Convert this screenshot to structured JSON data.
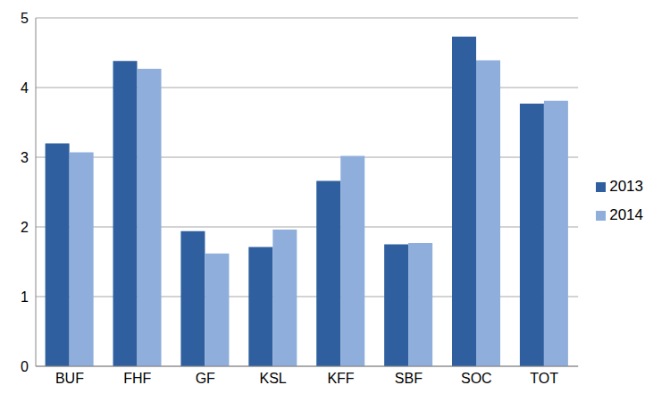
{
  "chart_data": {
    "type": "bar",
    "categories": [
      "BUF",
      "FHF",
      "GF",
      "KSL",
      "KFF",
      "SBF",
      "SOC",
      "TOT"
    ],
    "series": [
      {
        "name": "2013",
        "color": "#2f5f9e",
        "values": [
          3.2,
          4.38,
          1.94,
          1.71,
          2.66,
          1.75,
          4.73,
          3.77
        ]
      },
      {
        "name": "2014",
        "color": "#8faedb",
        "values": [
          3.07,
          4.27,
          1.62,
          1.96,
          3.02,
          1.77,
          4.39,
          3.81
        ]
      }
    ],
    "ylim": [
      0,
      5
    ],
    "yticks": [
      0,
      1,
      2,
      3,
      4,
      5
    ],
    "grid": true,
    "legend": "right"
  }
}
